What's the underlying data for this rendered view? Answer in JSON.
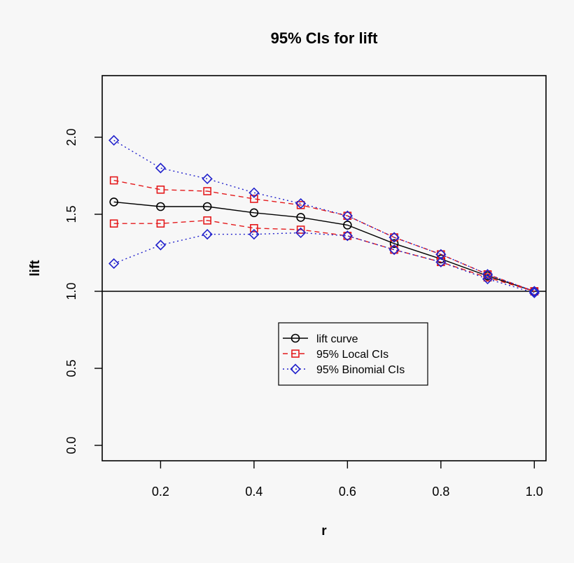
{
  "chart_data": {
    "type": "line",
    "title": "95% CIs for lift",
    "xlabel": "r",
    "ylabel": "lift",
    "xlim": [
      0.075,
      1.025
    ],
    "ylim": [
      -0.1,
      2.4
    ],
    "xticks": [
      0.2,
      0.4,
      0.6,
      0.8,
      1.0
    ],
    "xtick_labels": [
      "0.2",
      "0.4",
      "0.6",
      "0.8",
      "1.0"
    ],
    "yticks": [
      0.0,
      0.5,
      1.0,
      1.5,
      2.0
    ],
    "ytick_labels": [
      "0.0",
      "0.5",
      "1.0",
      "1.5",
      "2.0"
    ],
    "reference_line": 1.0,
    "grid": false,
    "legend_position": "center",
    "x": [
      0.1,
      0.2,
      0.3,
      0.4,
      0.5,
      0.6,
      0.7,
      0.8,
      0.9,
      1.0
    ],
    "series": [
      {
        "name": "lift curve",
        "color": "#000000",
        "line": "solid",
        "marker": "circle",
        "values": [
          1.58,
          1.55,
          1.55,
          1.51,
          1.48,
          1.43,
          1.31,
          1.21,
          1.1,
          1.0
        ]
      },
      {
        "name": "95% Local CIs",
        "color": "#e41a1c",
        "line": "dashed",
        "marker": "square",
        "values": [
          1.72,
          1.66,
          1.65,
          1.6,
          1.56,
          1.49,
          1.35,
          1.24,
          1.11,
          1.0
        ],
        "lower": [
          1.44,
          1.44,
          1.46,
          1.41,
          1.4,
          1.36,
          1.27,
          1.19,
          1.09,
          1.0
        ]
      },
      {
        "name": "95% Binomial CIs",
        "color": "#2222cc",
        "line": "dotted",
        "marker": "diamond",
        "values": [
          1.98,
          1.8,
          1.73,
          1.64,
          1.57,
          1.49,
          1.35,
          1.24,
          1.11,
          1.0
        ],
        "lower": [
          1.18,
          1.3,
          1.37,
          1.37,
          1.38,
          1.36,
          1.27,
          1.19,
          1.08,
          0.99
        ]
      }
    ]
  }
}
